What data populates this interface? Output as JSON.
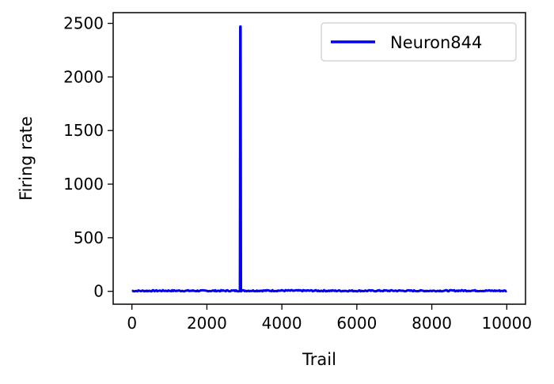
{
  "chart_data": {
    "type": "line",
    "title": "",
    "xlabel": "Trail",
    "ylabel": "Firing rate",
    "xlim": [
      -500,
      10500
    ],
    "ylim": [
      -120,
      2600
    ],
    "xticks": [
      0,
      2000,
      4000,
      6000,
      8000,
      10000
    ],
    "yticks": [
      0,
      500,
      1000,
      1500,
      2000,
      2500
    ],
    "grid": false,
    "legend": {
      "position": "top-right"
    },
    "series": [
      {
        "name": "Neuron844",
        "color": "#0000ee",
        "points": [
          [
            0,
            3
          ],
          [
            1000,
            5
          ],
          [
            2000,
            4
          ],
          [
            2880,
            5
          ],
          [
            2890,
            2470
          ],
          [
            2900,
            2470
          ],
          [
            2910,
            5
          ],
          [
            4000,
            6
          ],
          [
            5000,
            5
          ],
          [
            6000,
            4
          ],
          [
            7000,
            5
          ],
          [
            8000,
            4
          ],
          [
            9000,
            6
          ],
          [
            10000,
            4
          ]
        ],
        "noise_amplitude": 12
      }
    ]
  }
}
